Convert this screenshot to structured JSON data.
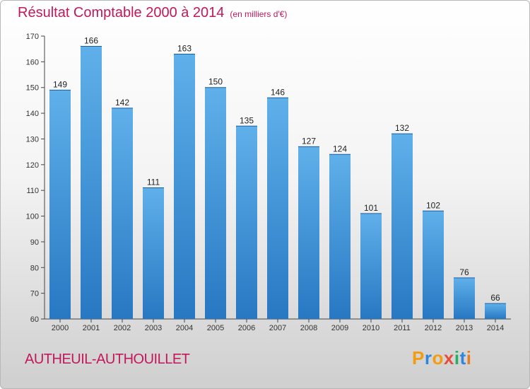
{
  "title": "Résultat Comptable 2000 à 2014",
  "subtitle": "(en milliers d'€)",
  "commune": "AUTHEUIL-AUTHOUILLET",
  "logo": {
    "letters": [
      "P",
      "r",
      "o",
      "x",
      "i",
      "t",
      "i"
    ],
    "colors": [
      "#f39c12",
      "#2e86de",
      "#f39c12",
      "#e74c3c",
      "#27ae60",
      "#2e86de",
      "#e67e22"
    ]
  },
  "colors": {
    "bar_light": "#5fb0ea",
    "bar_dark": "#2778c2",
    "accent": "#c2185b"
  },
  "chart_data": {
    "type": "bar",
    "categories": [
      "2000",
      "2001",
      "2002",
      "2003",
      "2004",
      "2005",
      "2006",
      "2007",
      "2008",
      "2009",
      "2010",
      "2011",
      "2012",
      "2013",
      "2014"
    ],
    "values": [
      149,
      166,
      142,
      111,
      163,
      150,
      135,
      146,
      127,
      124,
      101,
      132,
      102,
      76,
      66
    ],
    "ylim": [
      60,
      170
    ],
    "yticks": [
      60,
      70,
      80,
      90,
      100,
      110,
      120,
      130,
      140,
      150,
      160,
      170
    ],
    "grid": false,
    "legend": "none"
  }
}
